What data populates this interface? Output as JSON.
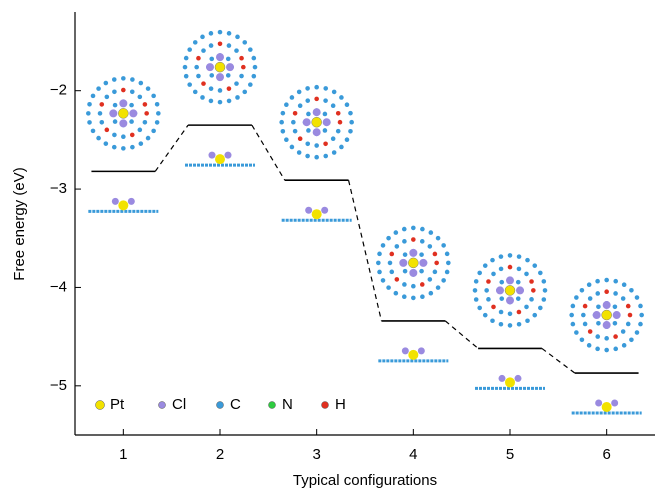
{
  "chart_data": {
    "type": "energy-level",
    "y_label": "Free energy (eV)",
    "x_label": "Typical configurations",
    "x": [
      1,
      2,
      3,
      4,
      5,
      6
    ],
    "values": [
      -2.82,
      -2.35,
      -2.91,
      -4.34,
      -4.62,
      -4.87
    ],
    "color": "#000000",
    "xlim": [
      0.5,
      6.5
    ],
    "xticks": [
      1,
      2,
      3,
      4,
      5,
      6
    ],
    "ylim": [
      -5.5,
      -1.2
    ],
    "yticks": [
      {
        "value": -2,
        "label": "−2"
      },
      {
        "value": -3,
        "label": "−3"
      },
      {
        "value": -4,
        "label": "−4"
      },
      {
        "value": -5,
        "label": "−5"
      }
    ],
    "grid": false,
    "legend": [
      {
        "name": "Pt",
        "color": "#f2e200"
      },
      {
        "name": "Cl",
        "color": "#9a8ae0"
      },
      {
        "name": "C",
        "color": "#3a9ad9"
      },
      {
        "name": "N",
        "color": "#2ecc40"
      },
      {
        "name": "H",
        "color": "#e03020"
      }
    ]
  }
}
